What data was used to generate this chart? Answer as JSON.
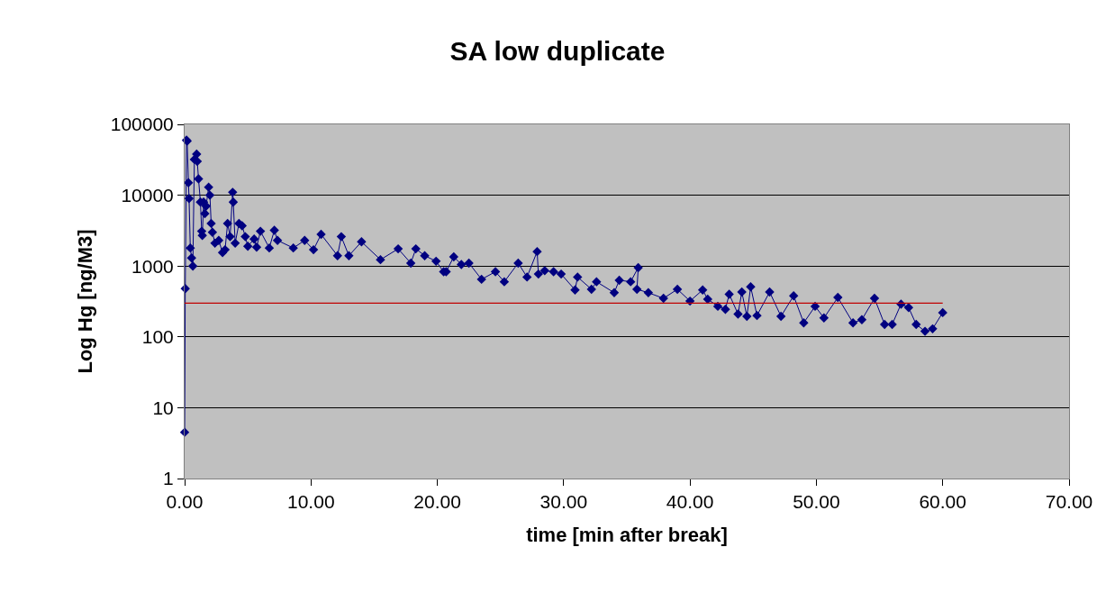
{
  "chart_data": {
    "type": "line",
    "title": "SA low duplicate",
    "xlabel": "time [min after break]",
    "ylabel": "Log Hg [ng/M3]",
    "log": "y",
    "grid": "y",
    "marker": "diamond",
    "line_style": "solid",
    "xlim": [
      0,
      70
    ],
    "xticks": [
      {
        "value": 0,
        "label": "0.00"
      },
      {
        "value": 10,
        "label": "10.00"
      },
      {
        "value": 20,
        "label": "20.00"
      },
      {
        "value": 30,
        "label": "30.00"
      },
      {
        "value": 40,
        "label": "40.00"
      },
      {
        "value": 50,
        "label": "50.00"
      },
      {
        "value": 60,
        "label": "60.00"
      },
      {
        "value": 70,
        "label": "70.00"
      }
    ],
    "ylim": [
      1,
      100000
    ],
    "yticks": [
      1,
      10,
      100,
      1000,
      10000,
      100000
    ],
    "series": [
      {
        "color": "#000080",
        "x": [
          0,
          0.05,
          0.15,
          0.2,
          0.3,
          0.35,
          0.45,
          0.55,
          0.65,
          0.77,
          0.95,
          1.0,
          1.1,
          1.25,
          1.35,
          1.4,
          1.5,
          1.6,
          1.7,
          1.9,
          2.0,
          2.1,
          2.2,
          2.4,
          2.7,
          3.0,
          3.2,
          3.4,
          3.6,
          3.8,
          3.85,
          4.0,
          4.3,
          4.55,
          4.8,
          5.0,
          5.5,
          5.7,
          6.0,
          6.7,
          7.1,
          7.35,
          8.6,
          9.5,
          10.2,
          10.8,
          12.1,
          12.4,
          13.0,
          14.0,
          15.5,
          16.9,
          17.9,
          18.3,
          19.0,
          19.9,
          20.5,
          20.7,
          21.3,
          21.9,
          22.5,
          23.5,
          24.6,
          25.3,
          26.4,
          27.1,
          27.9,
          28.0,
          28.5,
          29.2,
          29.8,
          30.9,
          31.1,
          32.2,
          32.6,
          34.0,
          34.4,
          35.3,
          35.9,
          35.8,
          36.7,
          37.9,
          39.0,
          40.0,
          41.0,
          41.4,
          42.2,
          42.8,
          43.1,
          43.8,
          44.1,
          44.5,
          44.8,
          45.3,
          46.3,
          47.2,
          48.2,
          49.0,
          49.9,
          50.6,
          51.7,
          52.9,
          53.6,
          54.6,
          55.4,
          56.0,
          56.7,
          57.3,
          57.9,
          58.6,
          59.2,
          60.0
        ],
        "values": [
          4.5,
          480,
          60000,
          58000,
          15000,
          9000,
          1800,
          1300,
          1000,
          32000,
          38000,
          30000,
          17000,
          8000,
          3100,
          2700,
          8000,
          5500,
          7000,
          13000,
          10000,
          4000,
          3000,
          2100,
          2300,
          1550,
          1700,
          4000,
          2600,
          11000,
          8000,
          2100,
          4000,
          3700,
          2600,
          1900,
          2400,
          1850,
          3100,
          1800,
          3200,
          2300,
          1800,
          2300,
          1700,
          2800,
          1400,
          2600,
          1400,
          2200,
          1230,
          1750,
          1100,
          1750,
          1400,
          1170,
          830,
          830,
          1350,
          1050,
          1100,
          650,
          830,
          600,
          1100,
          700,
          1600,
          770,
          860,
          830,
          770,
          460,
          700,
          470,
          600,
          420,
          630,
          600,
          950,
          470,
          420,
          350,
          470,
          320,
          460,
          340,
          270,
          245,
          400,
          210,
          430,
          195,
          510,
          200,
          430,
          195,
          380,
          158,
          270,
          185,
          360,
          158,
          175,
          350,
          150,
          150,
          290,
          260,
          150,
          120,
          130,
          220
        ]
      },
      {
        "type": "line",
        "color": "#c00000",
        "marker": "none",
        "x": [
          0,
          60
        ],
        "values": [
          300,
          300
        ]
      }
    ]
  }
}
